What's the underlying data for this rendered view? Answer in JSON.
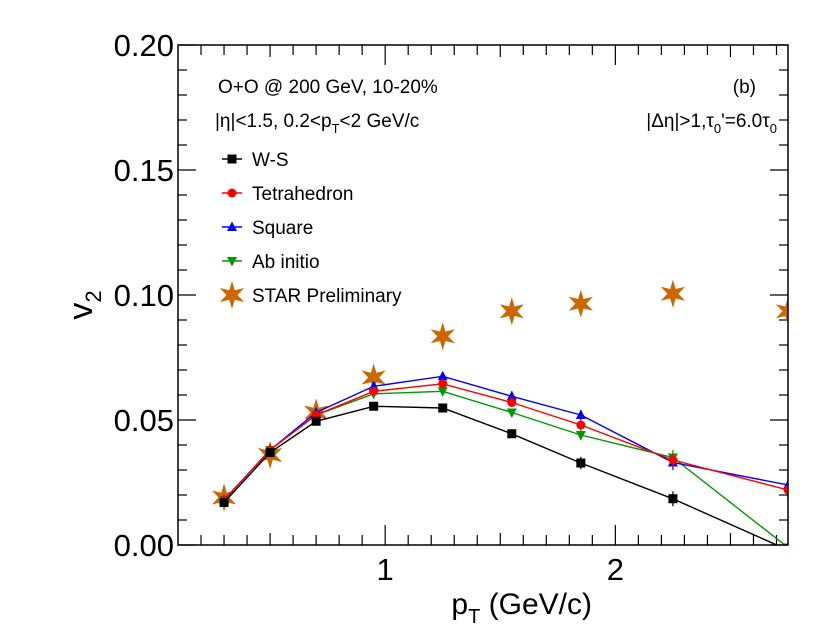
{
  "chart_data": {
    "type": "line",
    "title": "",
    "xlabel_main": "p",
    "xlabel_sub": "T",
    "xlabel_rest": " (GeV/c)",
    "ylabel_main": "v",
    "ylabel_sub": "2",
    "xlim": [
      0.1,
      2.75
    ],
    "ylim": [
      0.0,
      0.2
    ],
    "x_ticks": [
      1,
      2
    ],
    "x_tick_labels": [
      "1",
      "2"
    ],
    "y_ticks": [
      0.0,
      0.05,
      0.1,
      0.15,
      0.2
    ],
    "y_tick_labels": [
      "0.00",
      "0.05",
      "0.10",
      "0.15",
      "0.20"
    ],
    "annotations": {
      "system": "O+O @ 200 GeV, 10-20%",
      "cuts": "|η|<1.5, 0.2<p",
      "cuts_sub": "T",
      "cuts_rest": "<2 GeV/c",
      "panel": "(b)",
      "eta_gap": "|Δη|>1,τ",
      "tau_sub1": "0",
      "tau_mid": "'=6.0τ",
      "tau_sub2": "0"
    },
    "series": [
      {
        "name": "W-S",
        "color": "#000000",
        "marker": "square",
        "line": true,
        "x": [
          0.3,
          0.5,
          0.7,
          0.95,
          1.25,
          1.55,
          1.85,
          2.25,
          2.75
        ],
        "y": [
          0.017,
          0.037,
          0.0495,
          0.0555,
          0.0548,
          0.0445,
          0.0328,
          0.0185,
          -0.002
        ],
        "err": [
          0.001,
          0.001,
          0.001,
          0.001,
          0.001,
          0.0015,
          0.0025,
          0.003,
          0.0
        ]
      },
      {
        "name": "Tetrahedron",
        "color": "#ff0000",
        "marker": "circle",
        "line": true,
        "x": [
          0.3,
          0.5,
          0.7,
          0.95,
          1.25,
          1.55,
          1.85,
          2.25,
          2.75
        ],
        "y": [
          0.018,
          0.038,
          0.052,
          0.0615,
          0.0645,
          0.057,
          0.048,
          0.034,
          0.022
        ],
        "err": [
          0.001,
          0.001,
          0.001,
          0.001,
          0.001,
          0.0015,
          0.002,
          0.003,
          0.004
        ]
      },
      {
        "name": "Square",
        "color": "#0000ff",
        "marker": "triangle-up",
        "line": true,
        "x": [
          0.3,
          0.5,
          0.7,
          0.95,
          1.25,
          1.55,
          1.85,
          2.25,
          2.75
        ],
        "y": [
          0.018,
          0.038,
          0.053,
          0.0635,
          0.0675,
          0.0595,
          0.052,
          0.033,
          0.024
        ],
        "err": [
          0.001,
          0.001,
          0.001,
          0.001,
          0.001,
          0.002,
          0.002,
          0.003,
          0.006
        ]
      },
      {
        "name": "Ab initio",
        "color": "#009900",
        "marker": "triangle-down",
        "line": true,
        "x": [
          0.3,
          0.5,
          0.7,
          0.95,
          1.25,
          1.55,
          1.85,
          2.25,
          2.75
        ],
        "y": [
          0.018,
          0.038,
          0.052,
          0.0605,
          0.0615,
          0.053,
          0.044,
          0.035,
          -0.001
        ],
        "err": [
          0.001,
          0.001,
          0.001,
          0.001,
          0.001,
          0.0015,
          0.002,
          0.003,
          0.0
        ]
      },
      {
        "name": "STAR Preliminary",
        "color": "#cc6600",
        "marker": "star",
        "line": false,
        "x": [
          0.3,
          0.5,
          0.7,
          0.95,
          1.25,
          1.55,
          1.85,
          2.25,
          2.75
        ],
        "y": [
          0.019,
          0.036,
          0.053,
          0.067,
          0.0835,
          0.0935,
          0.0965,
          0.1005,
          0.0935
        ],
        "err": [
          0.0,
          0.0,
          0.0,
          0.0,
          0.0,
          0.0,
          0.0,
          0.0,
          0.0
        ]
      }
    ]
  }
}
